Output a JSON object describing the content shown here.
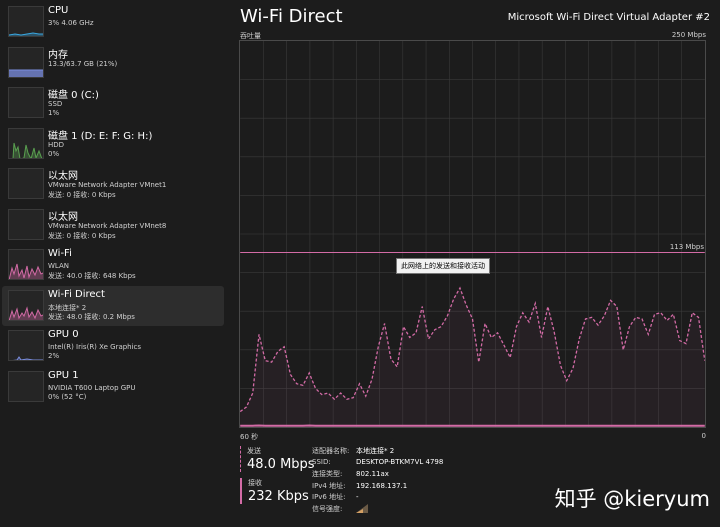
{
  "sidebar": {
    "items": [
      {
        "title": "CPU",
        "line1": "3%  4.06 GHz",
        "line2": ""
      },
      {
        "title": "内存",
        "line1": "13.3/63.7 GB (21%)",
        "line2": ""
      },
      {
        "title": "磁盘 0 (C:)",
        "line1": "SSD",
        "line2": "1%"
      },
      {
        "title": "磁盘 1 (D: E: F: G: H:)",
        "line1": "HDD",
        "line2": "0%"
      },
      {
        "title": "以太网",
        "line1": "VMware Network Adapter VMnet1",
        "line2": "发送: 0 接收: 0 Kbps"
      },
      {
        "title": "以太网",
        "line1": "VMware Network Adapter VMnet8",
        "line2": "发送: 0 接收: 0 Kbps"
      },
      {
        "title": "Wi-Fi",
        "line1": "WLAN",
        "line2": "发送: 40.0  接收: 648 Kbps"
      },
      {
        "title": "Wi-Fi Direct",
        "line1": "本地连接* 2",
        "line2": "发送: 48.0  接收: 0.2 Mbps"
      },
      {
        "title": "GPU 0",
        "line1": "Intel(R) Iris(R) Xe Graphics",
        "line2": "2%"
      },
      {
        "title": "GPU 1",
        "line1": "NVIDIA T600 Laptop GPU",
        "line2": "0% (52 °C)"
      }
    ]
  },
  "main": {
    "title": "Wi-Fi Direct",
    "adapter": "Microsoft Wi-Fi Direct Virtual Adapter #2",
    "throughput_label": "吞吐量",
    "max_label": "250 Mbps",
    "marker_label": "113 Mbps",
    "tooltip": "此网络上的发送和接收活动",
    "time_left": "60 秒",
    "time_right": "0"
  },
  "stats": {
    "send_label": "发送",
    "send_value": "48.0 Mbps",
    "recv_label": "接收",
    "recv_value": "232 Kbps"
  },
  "props": [
    {
      "key": "适配器名称:",
      "value": "本地连接* 2"
    },
    {
      "key": "SSID:",
      "value": "DESKTOP-BTKM7VL 4798"
    },
    {
      "key": "连接类型:",
      "value": "802.11ax"
    },
    {
      "key": "IPv4 地址:",
      "value": "192.168.137.1"
    },
    {
      "key": "IPv6 地址:",
      "value": "-"
    },
    {
      "key": "信号强度:",
      "value": ""
    }
  ],
  "watermark": "知乎 @kieryum",
  "colors": {
    "accent": "#d36ba6",
    "background": "#1c1c1c",
    "grid": "#3a3a3a"
  },
  "chart_data": {
    "type": "line",
    "title": "",
    "ylabel": "吞吐量",
    "ylim": [
      0,
      250
    ],
    "xlim": [
      60,
      0
    ],
    "marker_value": 113,
    "series": [
      {
        "name": "发送",
        "values": [
          10,
          13,
          22,
          60,
          43,
          42,
          49,
          52,
          34,
          28,
          27,
          35,
          25,
          21,
          22,
          18,
          22,
          18,
          19,
          28,
          20,
          31,
          52,
          67,
          44,
          39,
          65,
          58,
          61,
          78,
          57,
          63,
          65,
          72,
          83,
          90,
          79,
          70,
          42,
          67,
          58,
          61,
          53,
          45,
          65,
          74,
          68,
          80,
          58,
          78,
          62,
          40,
          30,
          38,
          57,
          70,
          71,
          66,
          72,
          82,
          78,
          50,
          65,
          71,
          70,
          60,
          73,
          74,
          69,
          73,
          56,
          54,
          74,
          71,
          43
        ]
      },
      {
        "name": "接收",
        "values": [
          0.2,
          0.2,
          0.2,
          0.3,
          0.2,
          0.2,
          0.2,
          0.2,
          0.2,
          0.2,
          0.2,
          0.3,
          0.2,
          0.2,
          0.2,
          0.2,
          0.2,
          0.2,
          0.2,
          0.2,
          0.2,
          0.2,
          0.2,
          0.2,
          0.2,
          0.2,
          0.2,
          0.2,
          0.2,
          0.2,
          0.2,
          0.2,
          0.2,
          0.2,
          0.2,
          0.2,
          0.2,
          0.2,
          0.2,
          0.2,
          0.2,
          0.2,
          0.2,
          0.2,
          0.2,
          0.2,
          0.2,
          0.2,
          0.2,
          0.2,
          0.2,
          0.2,
          0.2,
          0.2,
          0.2,
          0.2,
          0.2,
          0.2,
          0.2,
          0.2,
          0.2,
          0.2,
          0.2,
          0.2,
          0.2,
          0.2,
          0.2,
          0.2,
          0.2,
          0.2,
          0.2,
          0.2,
          0.2,
          0.2,
          0.2
        ]
      }
    ]
  }
}
